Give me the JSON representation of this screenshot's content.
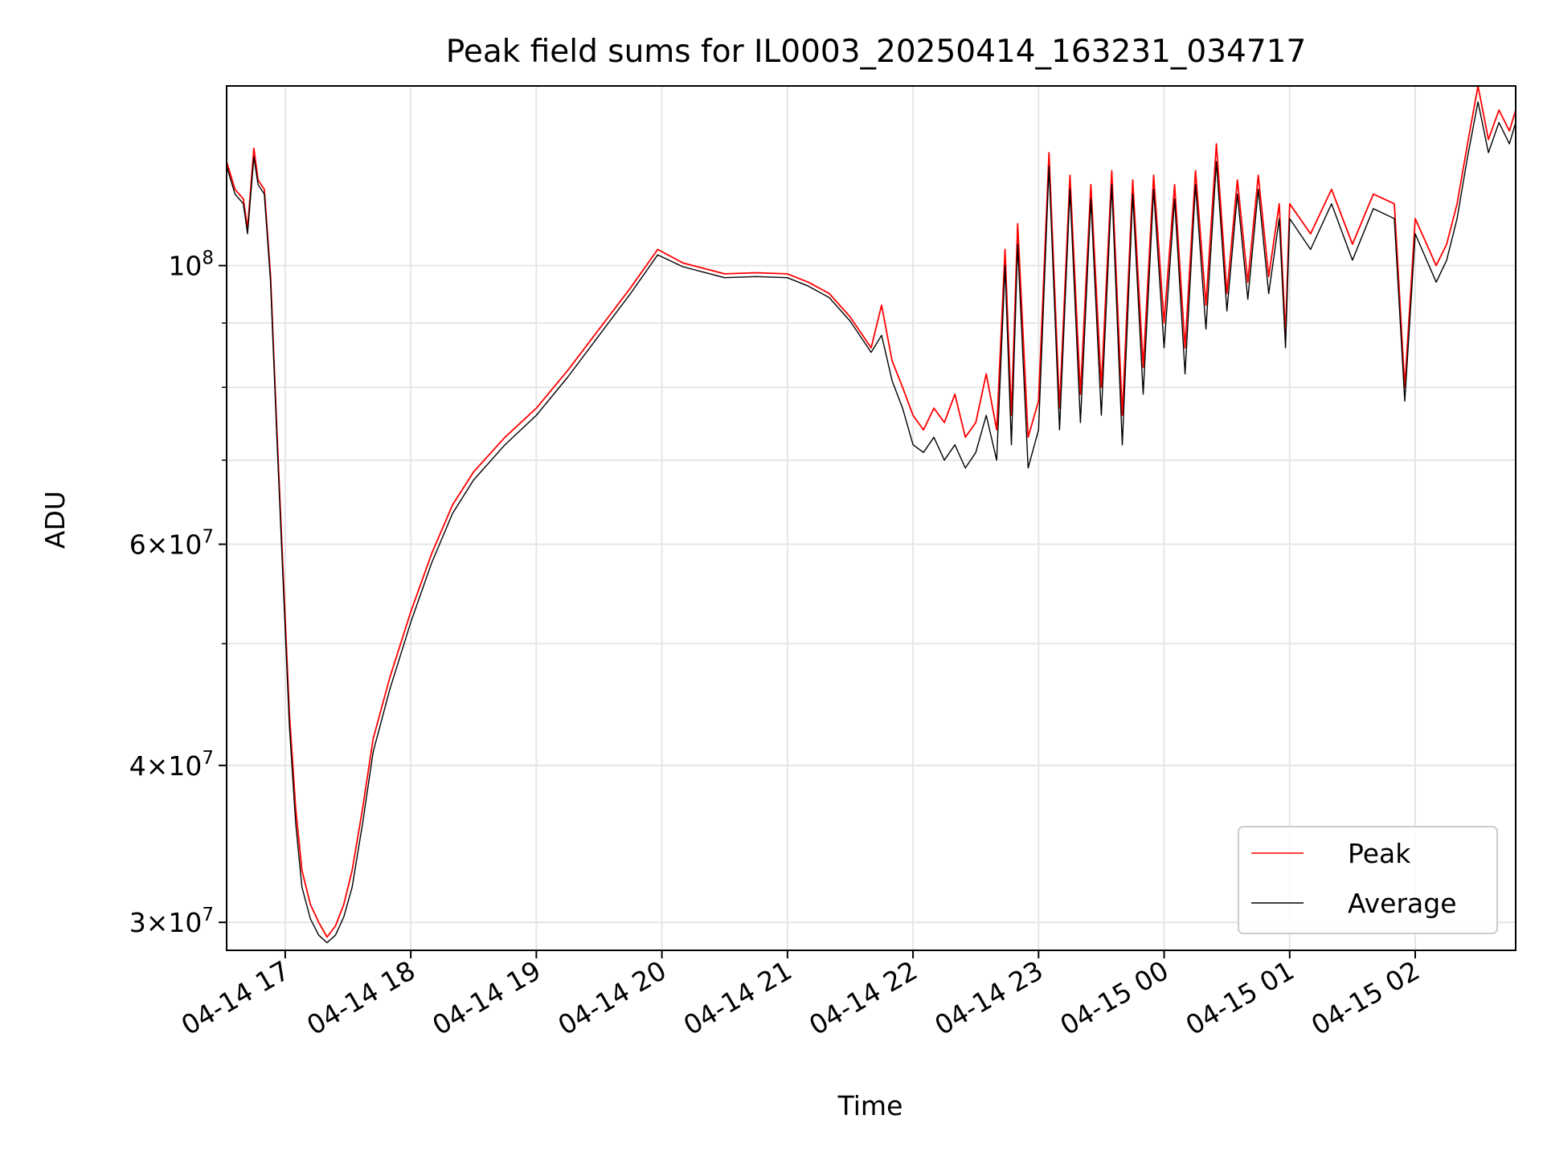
{
  "chart_data": {
    "type": "line",
    "title": "Peak field sums for IL0003_20250414_163231_034717",
    "xlabel": "Time",
    "ylabel": "ADU",
    "y_scale": "log",
    "xlim": [
      "2025-04-14 16:32",
      "2025-04-15 02:48"
    ],
    "ylim": [
      28500000,
      139000000
    ],
    "x_ticks": [
      {
        "t": "2025-04-14 17:00",
        "label": "04-14 17"
      },
      {
        "t": "2025-04-14 18:00",
        "label": "04-14 18"
      },
      {
        "t": "2025-04-14 19:00",
        "label": "04-14 19"
      },
      {
        "t": "2025-04-14 20:00",
        "label": "04-14 20"
      },
      {
        "t": "2025-04-14 21:00",
        "label": "04-14 21"
      },
      {
        "t": "2025-04-14 22:00",
        "label": "04-14 22"
      },
      {
        "t": "2025-04-14 23:00",
        "label": "04-14 23"
      },
      {
        "t": "2025-04-15 00:00",
        "label": "04-15 00"
      },
      {
        "t": "2025-04-15 01:00",
        "label": "04-15 01"
      },
      {
        "t": "2025-04-15 02:00",
        "label": "04-15 02"
      }
    ],
    "y_ticks": [
      {
        "v": 30000000,
        "base": "3×10",
        "exp": "7"
      },
      {
        "v": 40000000,
        "base": "4×10",
        "exp": "7"
      },
      {
        "v": 60000000,
        "base": "6×10",
        "exp": "7"
      },
      {
        "v": 100000000,
        "base": "10",
        "exp": "8"
      }
    ],
    "y_minor_ticks": [
      30000000,
      40000000,
      50000000,
      60000000,
      70000000,
      80000000,
      90000000
    ],
    "grid": true,
    "legend_position": "lower-right",
    "series": [
      {
        "name": "Peak",
        "color": "#ff0000",
        "points": [
          [
            "2025-04-14 16:32",
            121000000
          ],
          [
            "2025-04-14 16:36",
            115000000
          ],
          [
            "2025-04-14 16:40",
            113000000
          ],
          [
            "2025-04-14 16:42",
            107000000
          ],
          [
            "2025-04-14 16:45",
            124000000
          ],
          [
            "2025-04-14 16:47",
            117000000
          ],
          [
            "2025-04-14 16:50",
            115000000
          ],
          [
            "2025-04-14 16:53",
            98000000
          ],
          [
            "2025-04-14 16:56",
            74000000
          ],
          [
            "2025-04-14 16:59",
            57000000
          ],
          [
            "2025-04-14 17:02",
            44000000
          ],
          [
            "2025-04-14 17:05",
            37000000
          ],
          [
            "2025-04-14 17:08",
            33000000
          ],
          [
            "2025-04-14 17:12",
            31000000
          ],
          [
            "2025-04-14 17:16",
            30000000
          ],
          [
            "2025-04-14 17:20",
            29200000
          ],
          [
            "2025-04-14 17:24",
            29800000
          ],
          [
            "2025-04-14 17:28",
            31000000
          ],
          [
            "2025-04-14 17:32",
            33000000
          ],
          [
            "2025-04-14 17:37",
            37000000
          ],
          [
            "2025-04-14 17:42",
            42000000
          ],
          [
            "2025-04-14 17:50",
            47000000
          ],
          [
            "2025-04-14 18:00",
            53000000
          ],
          [
            "2025-04-14 18:10",
            59000000
          ],
          [
            "2025-04-14 18:20",
            64500000
          ],
          [
            "2025-04-14 18:30",
            68500000
          ],
          [
            "2025-04-14 18:45",
            73000000
          ],
          [
            "2025-04-14 19:00",
            77000000
          ],
          [
            "2025-04-14 19:15",
            82500000
          ],
          [
            "2025-04-14 19:30",
            89000000
          ],
          [
            "2025-04-14 19:45",
            96000000
          ],
          [
            "2025-04-14 19:58",
            103000000
          ],
          [
            "2025-04-14 20:10",
            100500000
          ],
          [
            "2025-04-14 20:30",
            98500000
          ],
          [
            "2025-04-14 20:45",
            98700000
          ],
          [
            "2025-04-14 21:00",
            98500000
          ],
          [
            "2025-04-14 21:10",
            97000000
          ],
          [
            "2025-04-14 21:20",
            95000000
          ],
          [
            "2025-04-14 21:30",
            91000000
          ],
          [
            "2025-04-14 21:40",
            86000000
          ],
          [
            "2025-04-14 21:45",
            93000000
          ],
          [
            "2025-04-14 21:50",
            84000000
          ],
          [
            "2025-04-14 21:55",
            80000000
          ],
          [
            "2025-04-14 22:00",
            76000000
          ],
          [
            "2025-04-14 22:05",
            74000000
          ],
          [
            "2025-04-14 22:10",
            77000000
          ],
          [
            "2025-04-14 22:15",
            75000000
          ],
          [
            "2025-04-14 22:20",
            79000000
          ],
          [
            "2025-04-14 22:25",
            73000000
          ],
          [
            "2025-04-14 22:30",
            75000000
          ],
          [
            "2025-04-14 22:35",
            82000000
          ],
          [
            "2025-04-14 22:40",
            74000000
          ],
          [
            "2025-04-14 22:44",
            103000000
          ],
          [
            "2025-04-14 22:47",
            76000000
          ],
          [
            "2025-04-14 22:50",
            108000000
          ],
          [
            "2025-04-14 22:55",
            73000000
          ],
          [
            "2025-04-14 23:00",
            78000000
          ],
          [
            "2025-04-14 23:05",
            123000000
          ],
          [
            "2025-04-14 23:10",
            77000000
          ],
          [
            "2025-04-14 23:15",
            118000000
          ],
          [
            "2025-04-14 23:20",
            79000000
          ],
          [
            "2025-04-14 23:25",
            116000000
          ],
          [
            "2025-04-14 23:30",
            80000000
          ],
          [
            "2025-04-14 23:35",
            119000000
          ],
          [
            "2025-04-14 23:40",
            76000000
          ],
          [
            "2025-04-14 23:45",
            117000000
          ],
          [
            "2025-04-14 23:50",
            83000000
          ],
          [
            "2025-04-14 23:55",
            118000000
          ],
          [
            "2025-04-15 00:00",
            90000000
          ],
          [
            "2025-04-15 00:05",
            116000000
          ],
          [
            "2025-04-15 00:10",
            86000000
          ],
          [
            "2025-04-15 00:15",
            119000000
          ],
          [
            "2025-04-15 00:20",
            93000000
          ],
          [
            "2025-04-15 00:25",
            125000000
          ],
          [
            "2025-04-15 00:30",
            95000000
          ],
          [
            "2025-04-15 00:35",
            117000000
          ],
          [
            "2025-04-15 00:40",
            97000000
          ],
          [
            "2025-04-15 00:45",
            118000000
          ],
          [
            "2025-04-15 00:50",
            98000000
          ],
          [
            "2025-04-15 00:55",
            112000000
          ],
          [
            "2025-04-15 00:58",
            88000000
          ],
          [
            "2025-04-15 01:00",
            112000000
          ],
          [
            "2025-04-15 01:10",
            106000000
          ],
          [
            "2025-04-15 01:20",
            115000000
          ],
          [
            "2025-04-15 01:30",
            104000000
          ],
          [
            "2025-04-15 01:40",
            114000000
          ],
          [
            "2025-04-15 01:50",
            112000000
          ],
          [
            "2025-04-15 01:55",
            80000000
          ],
          [
            "2025-04-15 02:00",
            109000000
          ],
          [
            "2025-04-15 02:10",
            100000000
          ],
          [
            "2025-04-15 02:15",
            104000000
          ],
          [
            "2025-04-15 02:20",
            112000000
          ],
          [
            "2025-04-15 02:25",
            125000000
          ],
          [
            "2025-04-15 02:30",
            139000000
          ],
          [
            "2025-04-15 02:35",
            126000000
          ],
          [
            "2025-04-15 02:40",
            133000000
          ],
          [
            "2025-04-15 02:45",
            128000000
          ],
          [
            "2025-04-15 02:48",
            133000000
          ]
        ]
      },
      {
        "name": "Average",
        "color": "#000000",
        "points": [
          [
            "2025-04-14 16:32",
            120000000
          ],
          [
            "2025-04-14 16:36",
            114000000
          ],
          [
            "2025-04-14 16:40",
            112000000
          ],
          [
            "2025-04-14 16:42",
            106000000
          ],
          [
            "2025-04-14 16:45",
            122000000
          ],
          [
            "2025-04-14 16:47",
            116000000
          ],
          [
            "2025-04-14 16:50",
            114000000
          ],
          [
            "2025-04-14 16:53",
            97000000
          ],
          [
            "2025-04-14 16:56",
            73000000
          ],
          [
            "2025-04-14 16:59",
            56000000
          ],
          [
            "2025-04-14 17:02",
            43000000
          ],
          [
            "2025-04-14 17:05",
            36000000
          ],
          [
            "2025-04-14 17:08",
            32000000
          ],
          [
            "2025-04-14 17:12",
            30200000
          ],
          [
            "2025-04-14 17:16",
            29300000
          ],
          [
            "2025-04-14 17:20",
            28900000
          ],
          [
            "2025-04-14 17:24",
            29300000
          ],
          [
            "2025-04-14 17:28",
            30300000
          ],
          [
            "2025-04-14 17:32",
            32000000
          ],
          [
            "2025-04-14 17:37",
            36000000
          ],
          [
            "2025-04-14 17:42",
            41000000
          ],
          [
            "2025-04-14 17:50",
            46000000
          ],
          [
            "2025-04-14 18:00",
            52000000
          ],
          [
            "2025-04-14 18:10",
            58000000
          ],
          [
            "2025-04-14 18:20",
            63500000
          ],
          [
            "2025-04-14 18:30",
            67500000
          ],
          [
            "2025-04-14 18:45",
            72000000
          ],
          [
            "2025-04-14 19:00",
            76000000
          ],
          [
            "2025-04-14 19:15",
            81500000
          ],
          [
            "2025-04-14 19:30",
            88000000
          ],
          [
            "2025-04-14 19:45",
            95000000
          ],
          [
            "2025-04-14 19:58",
            102000000
          ],
          [
            "2025-04-14 20:10",
            99800000
          ],
          [
            "2025-04-14 20:30",
            97800000
          ],
          [
            "2025-04-14 20:45",
            98000000
          ],
          [
            "2025-04-14 21:00",
            97800000
          ],
          [
            "2025-04-14 21:10",
            96300000
          ],
          [
            "2025-04-14 21:20",
            94300000
          ],
          [
            "2025-04-14 21:30",
            90300000
          ],
          [
            "2025-04-14 21:40",
            85300000
          ],
          [
            "2025-04-14 21:45",
            88000000
          ],
          [
            "2025-04-14 21:50",
            81000000
          ],
          [
            "2025-04-14 21:55",
            77000000
          ],
          [
            "2025-04-14 22:00",
            72000000
          ],
          [
            "2025-04-14 22:05",
            71000000
          ],
          [
            "2025-04-14 22:10",
            73000000
          ],
          [
            "2025-04-14 22:15",
            70000000
          ],
          [
            "2025-04-14 22:20",
            72000000
          ],
          [
            "2025-04-14 22:25",
            69000000
          ],
          [
            "2025-04-14 22:30",
            71000000
          ],
          [
            "2025-04-14 22:35",
            76000000
          ],
          [
            "2025-04-14 22:40",
            70000000
          ],
          [
            "2025-04-14 22:44",
            100000000
          ],
          [
            "2025-04-14 22:47",
            72000000
          ],
          [
            "2025-04-14 22:50",
            104000000
          ],
          [
            "2025-04-14 22:55",
            69000000
          ],
          [
            "2025-04-14 23:00",
            74000000
          ],
          [
            "2025-04-14 23:05",
            120000000
          ],
          [
            "2025-04-14 23:10",
            74000000
          ],
          [
            "2025-04-14 23:15",
            115000000
          ],
          [
            "2025-04-14 23:20",
            75000000
          ],
          [
            "2025-04-14 23:25",
            113000000
          ],
          [
            "2025-04-14 23:30",
            76000000
          ],
          [
            "2025-04-14 23:35",
            116000000
          ],
          [
            "2025-04-14 23:40",
            72000000
          ],
          [
            "2025-04-14 23:45",
            114000000
          ],
          [
            "2025-04-14 23:50",
            79000000
          ],
          [
            "2025-04-14 23:55",
            115000000
          ],
          [
            "2025-04-15 00:00",
            86000000
          ],
          [
            "2025-04-15 00:05",
            113000000
          ],
          [
            "2025-04-15 00:10",
            82000000
          ],
          [
            "2025-04-15 00:15",
            116000000
          ],
          [
            "2025-04-15 00:20",
            89000000
          ],
          [
            "2025-04-15 00:25",
            121000000
          ],
          [
            "2025-04-15 00:30",
            92000000
          ],
          [
            "2025-04-15 00:35",
            114000000
          ],
          [
            "2025-04-15 00:40",
            94000000
          ],
          [
            "2025-04-15 00:45",
            115000000
          ],
          [
            "2025-04-15 00:50",
            95000000
          ],
          [
            "2025-04-15 00:55",
            109000000
          ],
          [
            "2025-04-15 00:58",
            86000000
          ],
          [
            "2025-04-15 01:00",
            109000000
          ],
          [
            "2025-04-15 01:10",
            103000000
          ],
          [
            "2025-04-15 01:20",
            112000000
          ],
          [
            "2025-04-15 01:30",
            101000000
          ],
          [
            "2025-04-15 01:40",
            111000000
          ],
          [
            "2025-04-15 01:50",
            109000000
          ],
          [
            "2025-04-15 01:55",
            78000000
          ],
          [
            "2025-04-15 02:00",
            106000000
          ],
          [
            "2025-04-15 02:10",
            97000000
          ],
          [
            "2025-04-15 02:15",
            101000000
          ],
          [
            "2025-04-15 02:20",
            109000000
          ],
          [
            "2025-04-15 02:25",
            122000000
          ],
          [
            "2025-04-15 02:30",
            135000000
          ],
          [
            "2025-04-15 02:35",
            123000000
          ],
          [
            "2025-04-15 02:40",
            130000000
          ],
          [
            "2025-04-15 02:45",
            125000000
          ],
          [
            "2025-04-15 02:48",
            130000000
          ]
        ]
      }
    ]
  }
}
